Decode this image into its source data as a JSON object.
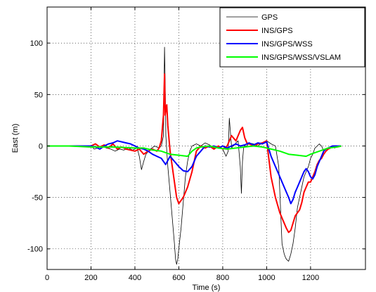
{
  "chart_data": {
    "type": "line",
    "title": "",
    "xlabel": "Time (s)",
    "ylabel": "East (m)",
    "xlim": [
      0,
      1450
    ],
    "ylim": [
      -120,
      135
    ],
    "xticks": [
      0,
      200,
      400,
      600,
      800,
      1000,
      1200
    ],
    "yticks": [
      -100,
      -50,
      0,
      50,
      100
    ],
    "grid": true,
    "legend_position": "top-right",
    "series": [
      {
        "name": "GPS",
        "color": "#000000",
        "x": [
          0,
          100,
          200,
          215,
          230,
          250,
          270,
          290,
          310,
          330,
          350,
          370,
          390,
          410,
          420,
          430,
          440,
          450,
          470,
          490,
          510,
          520,
          530,
          535,
          538,
          541,
          545,
          550,
          560,
          570,
          580,
          585,
          590,
          595,
          600,
          610,
          620,
          630,
          640,
          650,
          660,
          680,
          700,
          720,
          740,
          760,
          780,
          800,
          815,
          825,
          830,
          838,
          841,
          845,
          850,
          860,
          870,
          880,
          885,
          890,
          895,
          900,
          910,
          920,
          940,
          960,
          980,
          1000,
          1020,
          1040,
          1055,
          1060,
          1065,
          1070,
          1075,
          1080,
          1085,
          1090,
          1095,
          1100,
          1110,
          1120,
          1130,
          1140,
          1150,
          1160,
          1170,
          1180,
          1190,
          1200,
          1210,
          1220,
          1230,
          1240,
          1250,
          1260,
          1270,
          1280,
          1290,
          1300,
          1310,
          1320,
          1330,
          1340
        ],
        "y": [
          0,
          0,
          0,
          -3,
          -2,
          0,
          -2,
          -3,
          -5,
          -3,
          -4,
          -2,
          -4,
          -2,
          -10,
          -23,
          -15,
          -8,
          -3,
          0,
          -2,
          0,
          10,
          96,
          60,
          10,
          -5,
          -20,
          -45,
          -70,
          -95,
          -110,
          -115,
          -110,
          -100,
          -80,
          -55,
          -30,
          -15,
          -5,
          0,
          2,
          0,
          3,
          1,
          -2,
          0,
          -3,
          -10,
          -5,
          27,
          5,
          -2,
          0,
          0,
          3,
          5,
          -20,
          -46,
          -15,
          -2,
          0,
          0,
          3,
          2,
          0,
          3,
          5,
          2,
          0,
          -20,
          -45,
          -70,
          -95,
          -100,
          -105,
          -108,
          -110,
          -111,
          -112,
          -105,
          -95,
          -80,
          -60,
          -50,
          -40,
          -30,
          -25,
          -20,
          -12,
          -8,
          -2,
          0,
          2,
          0,
          -5,
          -3,
          -2,
          -1,
          0,
          -2,
          0,
          -1,
          0
        ]
      },
      {
        "name": "INS/GPS",
        "color": "#ff0000",
        "x": [
          0,
          100,
          200,
          220,
          240,
          260,
          280,
          300,
          320,
          340,
          360,
          380,
          400,
          420,
          440,
          460,
          480,
          500,
          510,
          520,
          530,
          535,
          538,
          541,
          545,
          550,
          560,
          570,
          580,
          590,
          600,
          620,
          640,
          660,
          680,
          700,
          720,
          740,
          760,
          780,
          800,
          820,
          840,
          860,
          880,
          890,
          900,
          910,
          920,
          940,
          960,
          980,
          1000,
          1020,
          1040,
          1060,
          1080,
          1090,
          1100,
          1110,
          1120,
          1130,
          1140,
          1150,
          1160,
          1170,
          1180,
          1190,
          1200,
          1210,
          1220,
          1230,
          1240,
          1250,
          1260,
          1270,
          1280,
          1290,
          1300,
          1320,
          1340
        ],
        "y": [
          0,
          0,
          0,
          2,
          -1,
          1,
          -2,
          2,
          -3,
          -1,
          -3,
          -4,
          -5,
          -3,
          -8,
          -5,
          -3,
          -5,
          -2,
          5,
          30,
          70,
          30,
          35,
          40,
          20,
          -5,
          -20,
          -35,
          -50,
          -56,
          -50,
          -40,
          -25,
          -5,
          0,
          -2,
          0,
          -3,
          0,
          -3,
          0,
          10,
          5,
          15,
          18,
          8,
          3,
          2,
          0,
          2,
          3,
          5,
          -30,
          -50,
          -65,
          -75,
          -80,
          -84,
          -82,
          -75,
          -68,
          -65,
          -62,
          -55,
          -45,
          -40,
          -35,
          -35,
          -30,
          -25,
          -18,
          -14,
          -12,
          -8,
          -5,
          -3,
          -2,
          0,
          -1,
          0
        ]
      },
      {
        "name": "INS/GPS/WSS",
        "color": "#0000ff",
        "x": [
          0,
          100,
          200,
          220,
          240,
          260,
          280,
          300,
          320,
          340,
          360,
          380,
          400,
          420,
          440,
          460,
          480,
          500,
          520,
          540,
          560,
          580,
          600,
          620,
          640,
          660,
          680,
          700,
          720,
          740,
          760,
          780,
          800,
          820,
          840,
          860,
          880,
          900,
          920,
          940,
          960,
          980,
          1000,
          1020,
          1040,
          1060,
          1080,
          1100,
          1110,
          1120,
          1130,
          1140,
          1150,
          1160,
          1170,
          1180,
          1190,
          1200,
          1210,
          1220,
          1230,
          1240,
          1250,
          1260,
          1270,
          1280,
          1290,
          1300,
          1320,
          1340
        ],
        "y": [
          0,
          0,
          0,
          -1,
          -3,
          0,
          2,
          3,
          5,
          4,
          3,
          2,
          0,
          -2,
          -3,
          -5,
          -8,
          -10,
          -12,
          -18,
          -10,
          -15,
          -20,
          -24,
          -25,
          -20,
          -10,
          -5,
          0,
          -1,
          0,
          -2,
          0,
          -2,
          0,
          2,
          0,
          1,
          3,
          1,
          3,
          2,
          4,
          -10,
          -20,
          -30,
          -40,
          -50,
          -56,
          -52,
          -45,
          -40,
          -35,
          -30,
          -25,
          -22,
          -25,
          -30,
          -32,
          -28,
          -20,
          -15,
          -10,
          -5,
          -3,
          -2,
          -1,
          0,
          0,
          0
        ]
      },
      {
        "name": "INS/GPS/WSS/VSLAM",
        "color": "#00ff00",
        "x": [
          0,
          100,
          200,
          300,
          400,
          440,
          480,
          520,
          560,
          600,
          640,
          660,
          680,
          700,
          740,
          780,
          820,
          860,
          900,
          940,
          980,
          1020,
          1060,
          1100,
          1140,
          1180,
          1200,
          1240,
          1280,
          1320,
          1340
        ],
        "y": [
          0,
          0,
          -1,
          -1,
          -2,
          -2,
          -4,
          -5,
          -8,
          -9,
          -10,
          -5,
          -2,
          -1,
          0,
          -2,
          -3,
          -2,
          -1,
          0,
          -1,
          -3,
          -5,
          -8,
          -9,
          -10,
          -8,
          -5,
          -2,
          -1,
          0
        ]
      }
    ]
  }
}
